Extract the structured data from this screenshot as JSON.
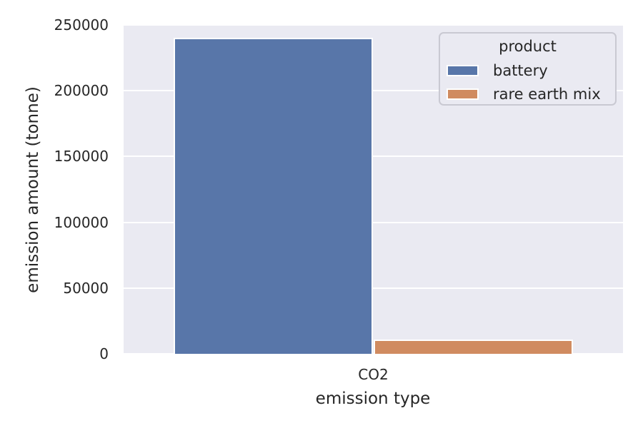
{
  "chart_data": {
    "type": "bar",
    "title": "",
    "categories": [
      "CO2"
    ],
    "series": [
      {
        "name": "battery",
        "values": [
          240000
        ],
        "color": "#5876a9"
      },
      {
        "name": "rare earth mix",
        "values": [
          11000
        ],
        "color": "#d08b60"
      }
    ],
    "xlabel": "emission type",
    "ylabel": "emission amount (tonne)",
    "ylim": [
      0,
      250000
    ],
    "yticks": [
      0,
      50000,
      100000,
      150000,
      200000,
      250000
    ],
    "ytick_labels": [
      "0",
      "50000",
      "100000",
      "150000",
      "200000",
      "250000"
    ],
    "grid": true,
    "legend": {
      "title": "product",
      "position": "upper right",
      "items": [
        "battery",
        "rare earth mix"
      ]
    },
    "colors": {
      "plot_background": "#eaeaf2",
      "gridline": "#ffffff",
      "text": "#262626",
      "legend_border": "#c9c9d2"
    }
  }
}
